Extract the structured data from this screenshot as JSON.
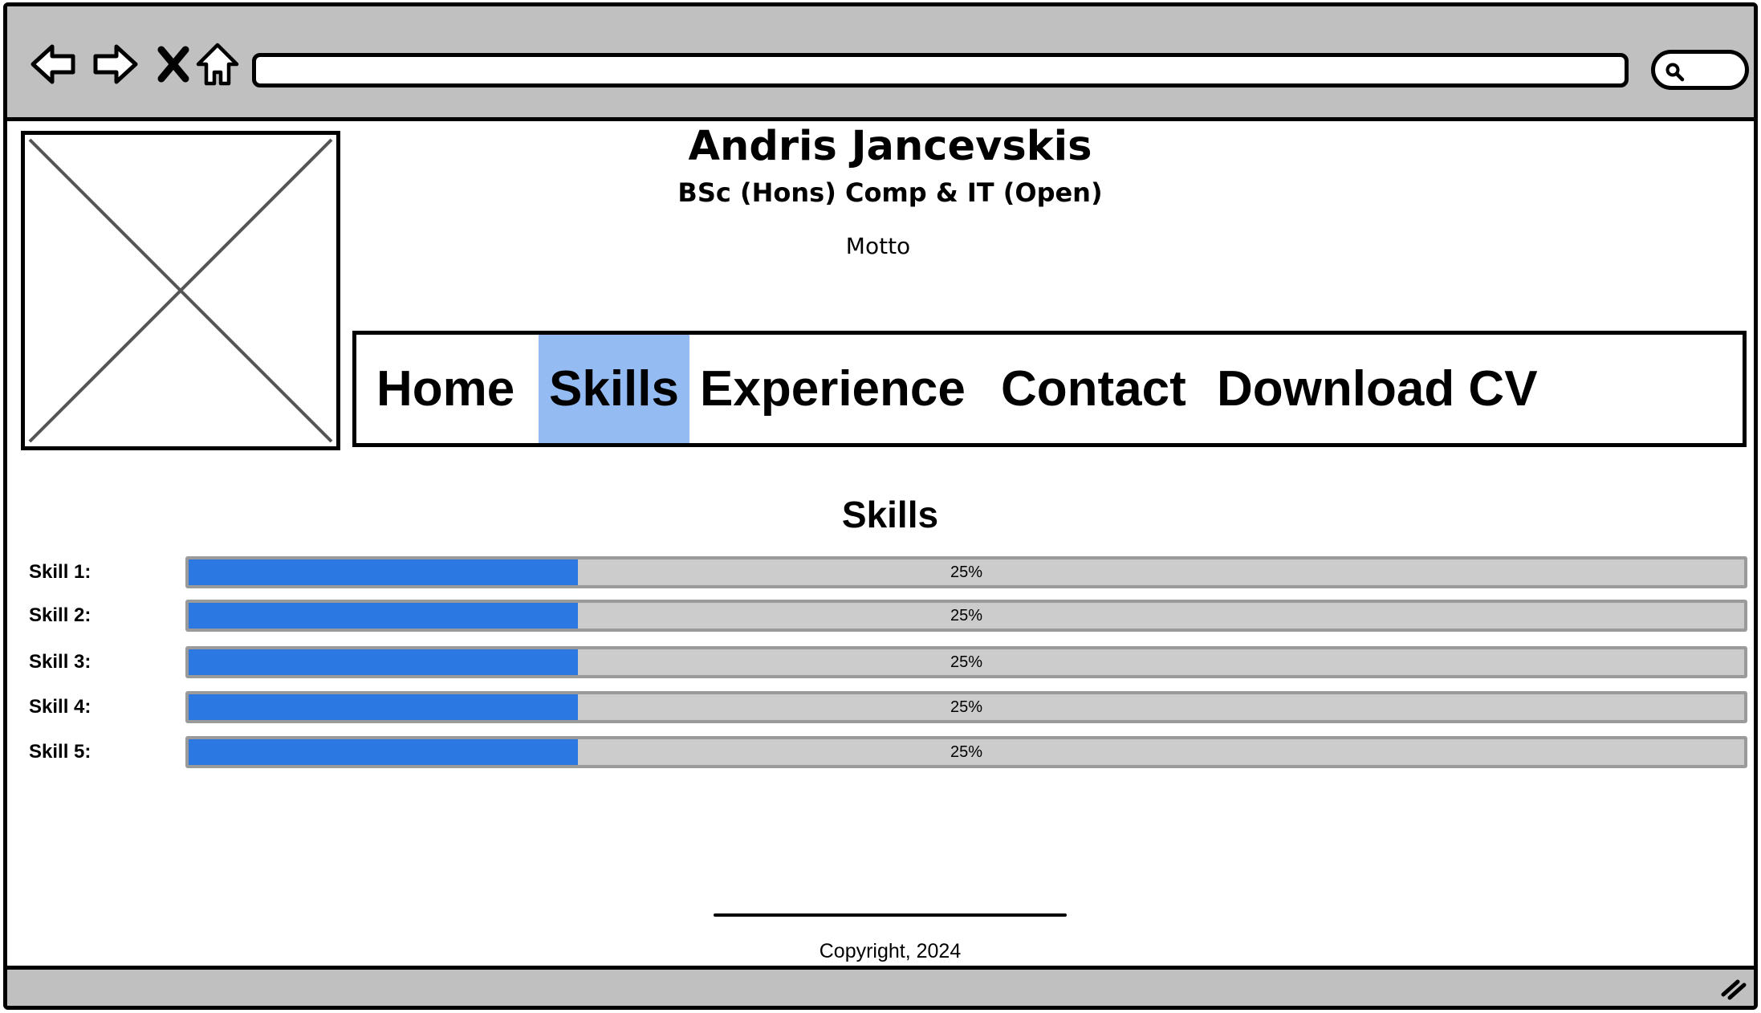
{
  "browser": {
    "toolbar_icons": [
      "back-arrow-icon",
      "forward-arrow-icon",
      "close-x-icon",
      "home-icon"
    ],
    "url": "",
    "search_icon": "search-icon"
  },
  "header": {
    "title": "Andris Jancevskis",
    "subtitle": "BSc (Hons) Comp & IT (Open)",
    "motto": "Motto",
    "image_icon": "image-placeholder-icon"
  },
  "nav": {
    "active": "Skills",
    "active_color": "#94bbf2",
    "items": [
      {
        "label": "Home"
      },
      {
        "label": "Skills"
      },
      {
        "label": "Experience"
      },
      {
        "label": "Contact"
      },
      {
        "label": "Download CV"
      }
    ]
  },
  "skills": {
    "heading": "Skills",
    "fill_color": "#2b78e3",
    "items": [
      {
        "label": "Skill 1:",
        "percent_text": "25%",
        "level": 0.25
      },
      {
        "label": "Skill 2:",
        "percent_text": "25%",
        "level": 0.25
      },
      {
        "label": "Skill 3:",
        "percent_text": "25%",
        "level": 0.25
      },
      {
        "label": "Skill 4:",
        "percent_text": "25%",
        "level": 0.25
      },
      {
        "label": "Skill 5:",
        "percent_text": "25%",
        "level": 0.25
      }
    ]
  },
  "footer": {
    "copyright": "Copyright, 2024"
  }
}
